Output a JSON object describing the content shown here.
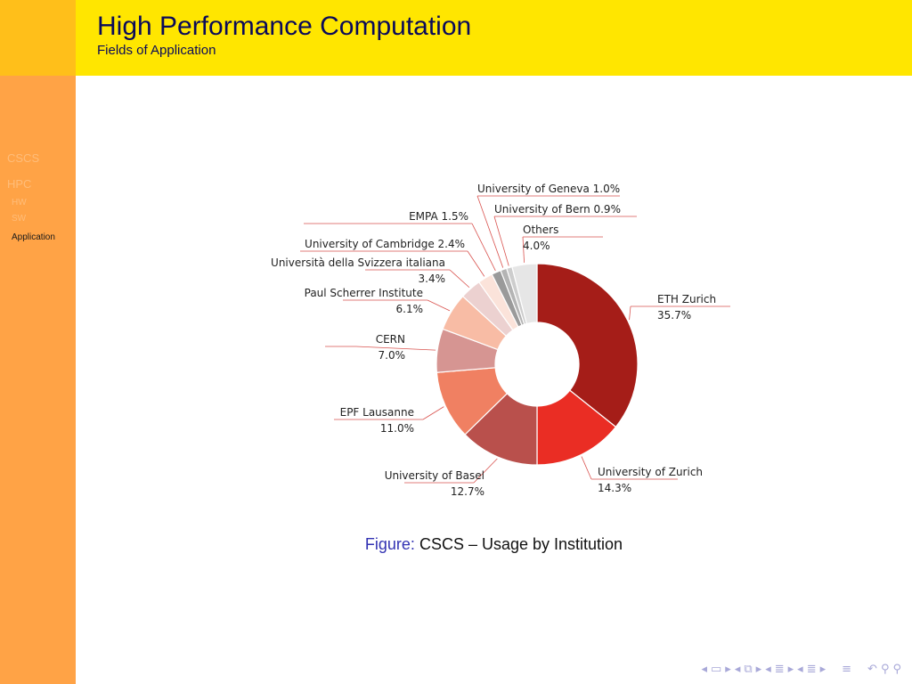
{
  "header": {
    "title": "High Performance Computation",
    "subtitle": "Fields of Application"
  },
  "sidebar": {
    "items": [
      {
        "label": "CSCS",
        "level": "section",
        "active": false
      },
      {
        "label": "HPC",
        "level": "section",
        "active": false
      },
      {
        "label": "HW",
        "level": "subsection",
        "active": false
      },
      {
        "label": "SW",
        "level": "subsection",
        "active": false
      },
      {
        "label": "Application",
        "level": "subsection",
        "active": true
      }
    ]
  },
  "caption": {
    "prefix": "Figure:",
    "text": "CSCS – Usage by Institution"
  },
  "navbar": {
    "icons": [
      "nav-left-arrow-icon",
      "nav-frame-icon",
      "nav-right-arrow-icon",
      "nav-left-arrow-icon",
      "nav-subsection-icon",
      "nav-right-arrow-icon",
      "nav-left-arrow-icon",
      "nav-section-icon",
      "nav-right-arrow-icon",
      "nav-left-arrow-icon",
      "nav-doc-icon",
      "nav-right-arrow-icon",
      "nav-align-icon",
      "nav-undo-icon",
      "nav-search-icon"
    ]
  },
  "chart_data": {
    "type": "pie",
    "donut": true,
    "title": "",
    "slices": [
      {
        "label": "ETH Zurich",
        "value": 35.7,
        "display": "35.7%",
        "color": "#a51d18"
      },
      {
        "label": "University of Zurich",
        "value": 14.3,
        "display": "14.3%",
        "color": "#ea2d24"
      },
      {
        "label": "University of Basel",
        "value": 12.7,
        "display": "12.7%",
        "color": "#b9504c"
      },
      {
        "label": "EPF Lausanne",
        "value": 11.0,
        "display": "11.0%",
        "color": "#f08062"
      },
      {
        "label": "CERN",
        "value": 7.0,
        "display": "7.0%",
        "color": "#d69592"
      },
      {
        "label": "Paul Scherrer Institute",
        "value": 6.1,
        "display": "6.1%",
        "color": "#f8bca5"
      },
      {
        "label": "Università della Svizzera italiana",
        "value": 3.4,
        "display": "3.4%",
        "color": "#ecd1d0"
      },
      {
        "label": "University of Cambridge",
        "value": 2.4,
        "display": "2.4%",
        "color": "#fbe3da"
      },
      {
        "label": "EMPA",
        "value": 1.5,
        "display": "1.5%",
        "color": "#9a9a9a"
      },
      {
        "label": "University of Geneva",
        "value": 1.0,
        "display": "1.0%",
        "color": "#b4b4b4"
      },
      {
        "label": "University of Bern",
        "value": 0.9,
        "display": "0.9%",
        "color": "#cdcdcd"
      },
      {
        "label": "Others",
        "value": 4.0,
        "display": "4.0%",
        "color": "#e6e6e6"
      }
    ]
  }
}
